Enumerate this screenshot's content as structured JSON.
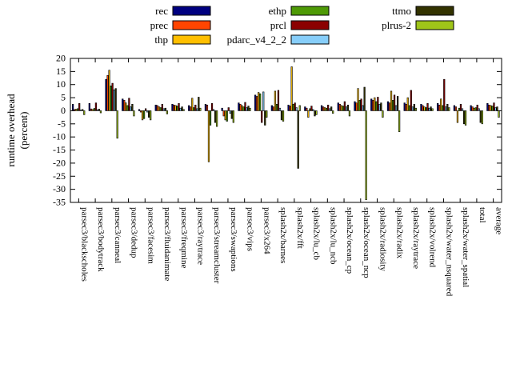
{
  "figure": {
    "ylabel_line1": "runtime overhead",
    "ylabel_line2": "(percent)"
  },
  "chart_data": {
    "type": "bar",
    "title": "",
    "xlabel": "",
    "ylabel": "runtime overhead (percent)",
    "ylim": [
      -35,
      20
    ],
    "yticks": [
      20,
      15,
      10,
      5,
      0,
      -5,
      -10,
      -15,
      -20,
      -25,
      -30,
      -35
    ],
    "grid": false,
    "legend_position": "top",
    "legend_columns": [
      [
        "rec",
        "prec",
        "thp"
      ],
      [
        "ethp",
        "prcl",
        "pdarc_v4_2_2"
      ],
      [
        "ttmo",
        "plrus-2"
      ]
    ],
    "categories": [
      "parsec3/blackscholes",
      "parsec3/bodytrack",
      "parsec3/canneal",
      "parsec3/dedup",
      "parsec3/facesim",
      "parsec3/fluidanimate",
      "parsec3/freqmine",
      "parsec3/raytrace",
      "parsec3/streamcluster",
      "parsec3/swaptions",
      "parsec3/vips",
      "parsec3/x264",
      "splash2x/barnes",
      "splash2x/fft",
      "splash2x/lu_cb",
      "splash2x/lu_ncb",
      "splash2x/ocean_cp",
      "splash2x/ocean_ncp",
      "splash2x/radiosity",
      "splash2x/radix",
      "splash2x/raytrace",
      "splash2x/volrend",
      "splash2x/water_nsquared",
      "splash2x/water_spatial",
      "total",
      "average"
    ],
    "series": [
      {
        "name": "rec",
        "color": "#000080",
        "values": [
          2.5,
          2.8,
          12.0,
          4.5,
          0.5,
          2.2,
          2.5,
          2.0,
          2.5,
          1.0,
          3.0,
          6.0,
          2.0,
          2.2,
          1.5,
          2.0,
          3.0,
          3.5,
          4.5,
          3.5,
          3.0,
          2.5,
          2.8,
          2.0,
          2.0,
          2.8
        ]
      },
      {
        "name": "prec",
        "color": "#ff4500",
        "values": [
          0.5,
          0.7,
          13.5,
          4.0,
          -0.5,
          2.0,
          2.2,
          1.5,
          2.2,
          -2.0,
          2.5,
          5.5,
          1.5,
          1.8,
          1.0,
          1.5,
          2.5,
          3.0,
          4.0,
          3.0,
          2.5,
          2.0,
          2.2,
          1.5,
          1.5,
          2.2
        ]
      },
      {
        "name": "thp",
        "color": "#ffbf00",
        "values": [
          0.6,
          0.5,
          15.5,
          3.0,
          -3.5,
          1.5,
          2.0,
          4.8,
          -19.5,
          -3.5,
          2.0,
          7.0,
          7.5,
          16.8,
          -2.5,
          1.2,
          2.0,
          8.5,
          5.0,
          7.5,
          5.0,
          1.5,
          4.5,
          -4.5,
          1.0,
          2.0
        ]
      },
      {
        "name": "ethp",
        "color": "#4e9a06",
        "values": [
          0.8,
          0.9,
          9.5,
          2.0,
          -3.0,
          1.2,
          1.8,
          1.2,
          -5.5,
          -4.0,
          1.5,
          6.5,
          2.5,
          2.5,
          0.8,
          1.0,
          1.8,
          4.0,
          3.5,
          4.0,
          2.0,
          1.2,
          2.0,
          1.0,
          1.2,
          1.8
        ]
      },
      {
        "name": "prcl",
        "color": "#8b0000",
        "values": [
          2.8,
          3.0,
          10.5,
          4.8,
          0.8,
          2.5,
          2.8,
          2.2,
          2.8,
          1.2,
          3.2,
          -4.5,
          7.8,
          3.0,
          1.8,
          2.2,
          3.5,
          4.5,
          5.2,
          6.0,
          7.8,
          2.8,
          12.0,
          2.5,
          2.2,
          3.0
        ]
      },
      {
        "name": "pdarc_v4_2_2",
        "color": "#87cefa",
        "values": [
          0.3,
          0.4,
          8.0,
          1.5,
          -0.5,
          0.8,
          1.0,
          0.8,
          0.5,
          -1.0,
          1.2,
          7.2,
          1.0,
          1.2,
          0.5,
          0.8,
          1.5,
          2.0,
          2.5,
          2.0,
          1.5,
          1.0,
          1.5,
          0.8,
          0.8,
          1.2
        ]
      },
      {
        "name": "ttmo",
        "color": "#333300",
        "values": [
          0.5,
          0.6,
          8.5,
          2.5,
          -2.5,
          1.0,
          1.5,
          5.2,
          -4.5,
          -3.0,
          1.8,
          -5.5,
          -3.5,
          -22.0,
          -2.0,
          1.5,
          2.2,
          9.0,
          3.0,
          5.5,
          2.5,
          1.5,
          2.5,
          -5.0,
          -4.5,
          1.5
        ]
      },
      {
        "name": "plrus-2",
        "color": "#9fc519",
        "values": [
          -1.5,
          -0.8,
          -10.5,
          -2.0,
          -3.5,
          -1.2,
          0.5,
          1.0,
          -6.0,
          -4.5,
          1.0,
          -2.5,
          -4.0,
          2.0,
          -1.5,
          -1.0,
          -2.0,
          -34.0,
          -2.5,
          -8.0,
          1.0,
          0.8,
          1.2,
          -5.5,
          -5.0,
          -2.5
        ]
      }
    ]
  }
}
